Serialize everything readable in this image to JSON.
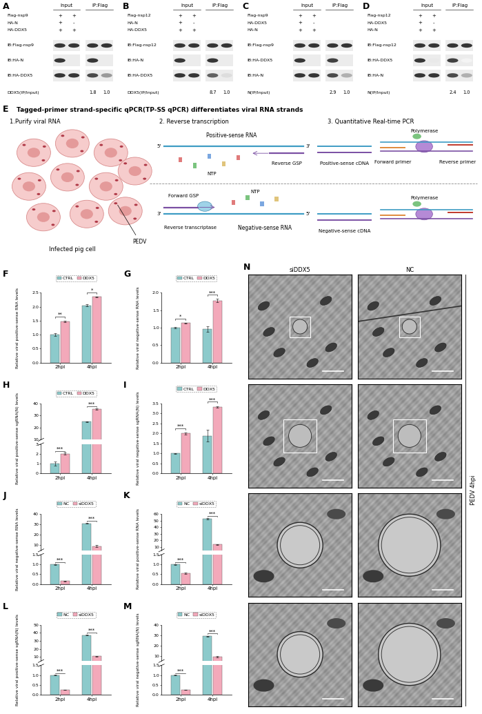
{
  "blot_panels": [
    {
      "panel": "A",
      "headers": [
        "Input",
        "IP:Flag"
      ],
      "conditions": [
        {
          "name": "Flag-nsp9",
          "signs": [
            "+",
            "+"
          ]
        },
        {
          "name": "HA-N",
          "signs": [
            "+",
            "-"
          ]
        },
        {
          "name": "HA-DDX5",
          "signs": [
            "+",
            "+"
          ]
        }
      ],
      "blots": [
        {
          "label": "IB:Flag-nsp9",
          "bands": [
            0.9,
            0.9,
            0.9,
            0.9
          ]
        },
        {
          "label": "IB:HA-N",
          "bands": [
            0.9,
            0,
            0.9,
            0
          ]
        },
        {
          "label": "IB:HA-DDX5",
          "bands": [
            0.9,
            0.9,
            0.8,
            0.45
          ]
        }
      ],
      "ratio_label": "DDX5(IP/Input)",
      "ratios": [
        1.8,
        1.0
      ]
    },
    {
      "panel": "B",
      "headers": [
        "Input",
        "IP:Flag"
      ],
      "conditions": [
        {
          "name": "Flag-nsp12",
          "signs": [
            "+",
            "+"
          ]
        },
        {
          "name": "HA-N",
          "signs": [
            "+",
            "-"
          ]
        },
        {
          "name": "HA-DDX5",
          "signs": [
            "+",
            "+"
          ]
        }
      ],
      "blots": [
        {
          "label": "IB:Flag-nsp12",
          "bands": [
            0.9,
            0.9,
            0.9,
            0.9
          ]
        },
        {
          "label": "IB:HA-N",
          "bands": [
            0.9,
            0,
            0.9,
            0
          ]
        },
        {
          "label": "IB:HA-DDX5",
          "bands": [
            0.9,
            0.9,
            0.7,
            0.15
          ]
        }
      ],
      "ratio_label": "DDX5(IP/Input)",
      "ratios": [
        8.7,
        1.0
      ]
    },
    {
      "panel": "C",
      "headers": [
        "Input",
        "IP:Flag"
      ],
      "conditions": [
        {
          "name": "Flag-nsp9",
          "signs": [
            "+",
            "+"
          ]
        },
        {
          "name": "HA-DDX5",
          "signs": [
            "+",
            "-"
          ]
        },
        {
          "name": "HA-N",
          "signs": [
            "+",
            "+"
          ]
        }
      ],
      "blots": [
        {
          "label": "IB:Flag-nsp9",
          "bands": [
            0.9,
            0.9,
            0.9,
            0.9
          ]
        },
        {
          "label": "IB:HA-DDX5",
          "bands": [
            0.9,
            0,
            0.85,
            0
          ]
        },
        {
          "label": "IB:HA-N",
          "bands": [
            0.9,
            0.9,
            0.8,
            0.35
          ]
        }
      ],
      "ratio_label": "N(IP/Input)",
      "ratios": [
        2.9,
        1.0
      ]
    },
    {
      "panel": "D",
      "headers": [
        "Input",
        "IP:Flag"
      ],
      "conditions": [
        {
          "name": "Flag-nsp12",
          "signs": [
            "+",
            "+"
          ]
        },
        {
          "name": "HA-DDX5",
          "signs": [
            "+",
            "-"
          ]
        },
        {
          "name": "HA-N",
          "signs": [
            "+",
            "+"
          ]
        }
      ],
      "blots": [
        {
          "label": "IB:Flag-nsp12",
          "bands": [
            0.9,
            0.9,
            0.9,
            0.9
          ]
        },
        {
          "label": "IB:HA-DDX5",
          "bands": [
            0.9,
            0.1,
            0.85,
            0.05
          ]
        },
        {
          "label": "IB:HA-N",
          "bands": [
            0.9,
            0.9,
            0.8,
            0.35
          ]
        }
      ],
      "ratio_label": "N(IP/Input)",
      "ratios": [
        2.4,
        1.0
      ]
    }
  ],
  "diagram": {
    "panel": "E",
    "title": "Tagged-primer strand-specific qPCR(TP-SS qPCR) differentiates viral RNA strands",
    "steps": [
      "1.Purify viral RNA",
      "2. Reverse transcription",
      "3. Quantitative Real-time PCR"
    ],
    "virus": "PEDV",
    "cell_label": "Infected pig cell",
    "rt": {
      "positive": "Positive-sense RNA",
      "negative": "Negative-sense RNA",
      "reverse_primer": "Reverse GSP",
      "forward_primer": "Forward GSP",
      "nucleotides": "NTP",
      "enzyme": "Reverse transcriptase"
    },
    "qpcr": {
      "positive": "Positive-sense cDNA",
      "negative": "Negative-sense cDNA",
      "forward": "Forward primer",
      "reverse": "Reverse primer",
      "enzyme": "Polymerase"
    },
    "ends": [
      "5'",
      "3'"
    ]
  },
  "chart_data": [
    {
      "panel": "F",
      "type": "bar",
      "ylabel": "Relative viral positive-sense RNA levels",
      "categories": [
        "2hpi",
        "4hpi"
      ],
      "series": [
        {
          "name": "CTRL",
          "color": "#8ccacb",
          "values": [
            1.0,
            2.05
          ],
          "errors": [
            0.05,
            0.04
          ]
        },
        {
          "name": "DDX5",
          "color": "#f3a9ba",
          "values": [
            1.48,
            2.35
          ],
          "errors": [
            0.02,
            0.01
          ]
        }
      ],
      "ylim": [
        0,
        2.5
      ],
      "yticks": [
        {
          "value": 0,
          "label": "0.0"
        },
        0.5,
        {
          "value": 1,
          "label": "1.0"
        },
        1.5,
        {
          "value": 2,
          "label": "2.0"
        },
        2.5
      ],
      "significance": [
        "**",
        "*"
      ],
      "legend": "top"
    },
    {
      "panel": "G",
      "type": "bar",
      "ylabel": "Relative viral negative-sense RNA levels",
      "categories": [
        "2hpi",
        "4hpi"
      ],
      "series": [
        {
          "name": "CTRL",
          "color": "#8ccacb",
          "values": [
            1.0,
            0.97
          ],
          "errors": [
            0.02,
            0.08
          ]
        },
        {
          "name": "DDX5",
          "color": "#f3a9ba",
          "values": [
            1.13,
            1.78
          ],
          "errors": [
            0.01,
            0.04
          ]
        }
      ],
      "ylim": [
        0,
        2
      ],
      "yticks": [
        {
          "value": 0,
          "label": "0.0"
        },
        0.5,
        {
          "value": 1,
          "label": "1.0"
        },
        1.5,
        {
          "value": 2,
          "label": "2.0"
        }
      ],
      "significance": [
        "*",
        "***"
      ],
      "legend": "top"
    },
    {
      "panel": "H",
      "type": "bar",
      "ylabel": "Relative viral positive-sense sgRNA(N) levels",
      "categories": [
        "2hpi",
        "4hpi"
      ],
      "series": [
        {
          "name": "CTRL",
          "color": "#8ccacb",
          "values": [
            1.0,
            25
          ],
          "errors": [
            0.2,
            0.3
          ]
        },
        {
          "name": "DDX5",
          "color": "#f3a9ba",
          "values": [
            2.0,
            35.5
          ],
          "errors": [
            0.1,
            0.5
          ]
        }
      ],
      "ylim": [
        0,
        40
      ],
      "y_break": [
        3,
        10
      ],
      "yticks": [
        0,
        1,
        2,
        3,
        10,
        20,
        30,
        40
      ],
      "significance": [
        "***",
        "***"
      ],
      "legend": "top"
    },
    {
      "panel": "I",
      "type": "bar",
      "ylabel": "Relative viral negative-sense sgRNA(N) levels",
      "categories": [
        "2hpi",
        "4hpi"
      ],
      "series": [
        {
          "name": "CTRL",
          "color": "#8ccacb",
          "values": [
            1.0,
            1.88
          ],
          "errors": [
            0.02,
            0.3
          ]
        },
        {
          "name": "DDX5",
          "color": "#f3a9ba",
          "values": [
            2.0,
            3.32
          ],
          "errors": [
            0.05,
            0.05
          ]
        }
      ],
      "ylim": [
        0,
        3.5
      ],
      "yticks": [
        {
          "value": 0,
          "label": "0.0"
        },
        0.5,
        {
          "value": 1,
          "label": "1.0"
        },
        1.5,
        {
          "value": 2,
          "label": "2.0"
        },
        2.5,
        {
          "value": 3,
          "label": "3.0"
        },
        3.5
      ],
      "significance": [
        "***",
        "***"
      ],
      "legend": "top"
    },
    {
      "panel": "J",
      "type": "bar",
      "ylabel": "Relative viral negative-sense RNA levels",
      "categories": [
        "2hpi",
        "4hpi"
      ],
      "series": [
        {
          "name": "NC",
          "color": "#8ccacb",
          "values": [
            1.0,
            31
          ],
          "errors": [
            0.02,
            0.4
          ]
        },
        {
          "name": "siDDX5",
          "color": "#f3a9ba",
          "values": [
            0.15,
            9.0
          ],
          "errors": [
            0.01,
            1.0
          ]
        }
      ],
      "ylim": [
        0,
        40
      ],
      "y_break": [
        1.5,
        5
      ],
      "yticks": [
        {
          "value": 0,
          "label": "0.0"
        },
        0.5,
        {
          "value": 1,
          "label": "1.0"
        },
        1.5,
        10,
        20,
        30,
        40
      ],
      "significance": [
        "***",
        "***"
      ],
      "legend": "top"
    },
    {
      "panel": "K",
      "type": "bar",
      "ylabel": "Relative viral positive-sense RNA levels",
      "categories": [
        "2hpi",
        "4hpi"
      ],
      "series": [
        {
          "name": "NC",
          "color": "#8ccacb",
          "values": [
            1.0,
            53
          ],
          "errors": [
            0.02,
            0.8
          ]
        },
        {
          "name": "siDDX5",
          "color": "#f3a9ba",
          "values": [
            0.55,
            14
          ],
          "errors": [
            0.02,
            0.5
          ]
        }
      ],
      "ylim": [
        0,
        60
      ],
      "y_break": [
        1.5,
        5
      ],
      "yticks": [
        {
          "value": 0,
          "label": "0.0"
        },
        0.5,
        {
          "value": 1,
          "label": "1.0"
        },
        1.5,
        10,
        20,
        30,
        40,
        50,
        60
      ],
      "significance": [
        "***",
        "***"
      ],
      "legend": "top"
    },
    {
      "panel": "L",
      "type": "bar",
      "ylabel": "Relative viral positive-sense sgRNA(N) levels",
      "categories": [
        "2hpi",
        "4hpi"
      ],
      "series": [
        {
          "name": "NC",
          "color": "#8ccacb",
          "values": [
            1.0,
            37
          ],
          "errors": [
            0.02,
            0.5
          ]
        },
        {
          "name": "siDDX5",
          "color": "#f3a9ba",
          "values": [
            0.25,
            11
          ],
          "errors": [
            0.01,
            0.4
          ]
        }
      ],
      "ylim": [
        0,
        50
      ],
      "y_break": [
        1.5,
        5
      ],
      "yticks": [
        {
          "value": 0,
          "label": "0.0"
        },
        0.5,
        {
          "value": 1,
          "label": "1.0"
        },
        1.5,
        10,
        20,
        30,
        40,
        50
      ],
      "significance": [
        "***",
        "***"
      ],
      "legend": "top"
    },
    {
      "panel": "M",
      "type": "bar",
      "ylabel": "Relative viral negative-sense sgRNA(N) levels",
      "categories": [
        "2hpi",
        "4hpi"
      ],
      "series": [
        {
          "name": "NC",
          "color": "#8ccacb",
          "values": [
            1.0,
            29
          ],
          "errors": [
            0.02,
            0.4
          ]
        },
        {
          "name": "siDDX5",
          "color": "#f3a9ba",
          "values": [
            0.25,
            9.0
          ],
          "errors": [
            0.01,
            0.8
          ]
        }
      ],
      "ylim": [
        0,
        40
      ],
      "y_break": [
        1.5,
        5
      ],
      "yticks": [
        {
          "value": 0,
          "label": "0.0"
        },
        0.5,
        {
          "value": 1,
          "label": "1.0"
        },
        1.5,
        10,
        20,
        30,
        40
      ],
      "significance": [
        "***",
        "***"
      ],
      "legend": "top"
    }
  ],
  "micrographs": {
    "panel": "N",
    "columns": [
      "siDDX5",
      "NC"
    ],
    "condition": "PEDV 4hpi",
    "rows": 4
  }
}
